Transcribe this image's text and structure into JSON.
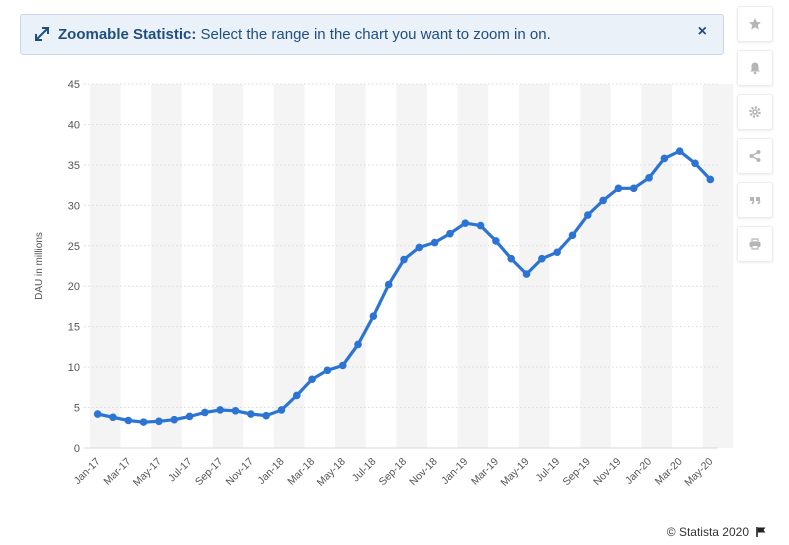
{
  "banner": {
    "title": "Zoomable Statistic:",
    "message": "Select the range in the chart you want to zoom in on.",
    "close": "×"
  },
  "toolbar": {
    "icons": [
      "star-icon",
      "bell-icon",
      "gear-icon",
      "share-icon",
      "quote-icon",
      "print-icon"
    ]
  },
  "footer": {
    "credit": "© Statista 2020"
  },
  "colors": {
    "line": "#2c74d4",
    "grid": "#d9d9d9",
    "band": "#f4f4f4"
  },
  "chart_data": {
    "type": "line",
    "title": "",
    "xlabel": "",
    "ylabel": "DAU in millions",
    "ylim": [
      0,
      45
    ],
    "yticks": [
      0,
      5,
      10,
      15,
      20,
      25,
      30,
      35,
      40,
      45
    ],
    "grid": true,
    "categories": [
      "Jan-17",
      "Feb-17",
      "Mar-17",
      "Apr-17",
      "May-17",
      "Jun-17",
      "Jul-17",
      "Aug-17",
      "Sep-17",
      "Oct-17",
      "Nov-17",
      "Dec-17",
      "Jan-18",
      "Feb-18",
      "Mar-18",
      "Apr-18",
      "May-18",
      "Jun-18",
      "Jul-18",
      "Aug-18",
      "Sep-18",
      "Oct-18",
      "Nov-18",
      "Dec-18",
      "Jan-19",
      "Feb-19",
      "Mar-19",
      "Apr-19",
      "May-19",
      "Jun-19",
      "Jul-19",
      "Aug-19",
      "Sep-19",
      "Oct-19",
      "Nov-19",
      "Dec-19",
      "Jan-20",
      "Feb-20",
      "Mar-20",
      "Apr-20",
      "May-20"
    ],
    "xtick_labels": [
      "Jan-17",
      "Mar-17",
      "May-17",
      "Jul-17",
      "Sep-17",
      "Nov-17",
      "Jan-18",
      "Mar-18",
      "May-18",
      "Jul-18",
      "Sep-18",
      "Nov-18",
      "Jan-19",
      "Mar-19",
      "May-19",
      "Jul-19",
      "Sep-19",
      "Nov-19",
      "Jan-20",
      "Mar-20",
      "May-20"
    ],
    "series": [
      {
        "values": [
          4.2,
          3.8,
          3.4,
          3.2,
          3.3,
          3.5,
          3.9,
          4.4,
          4.7,
          4.6,
          4.2,
          4.0,
          4.7,
          6.5,
          8.5,
          9.6,
          10.2,
          12.8,
          16.3,
          20.2,
          23.3,
          24.8,
          25.4,
          26.5,
          27.8,
          27.5,
          25.6,
          23.4,
          21.5,
          23.4,
          24.2,
          26.3,
          28.8,
          30.6,
          32.1,
          32.1,
          33.4,
          35.8,
          36.7,
          35.2,
          33.2
        ]
      }
    ]
  }
}
